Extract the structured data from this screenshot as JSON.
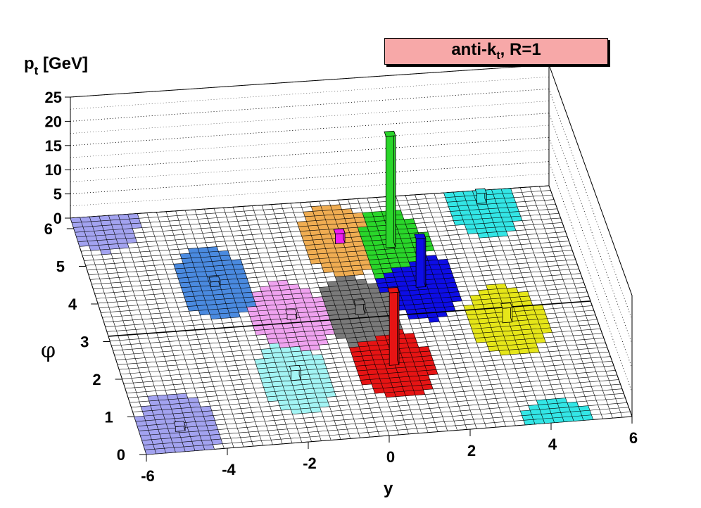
{
  "chart_data": {
    "type": "lego3d",
    "title_parts": [
      "anti-k",
      "t",
      ", R=1"
    ],
    "xlabel": "y",
    "ylabel": "φ",
    "zlabel_parts": [
      "p",
      "t",
      " [GeV]"
    ],
    "xlim": [
      -6,
      6
    ],
    "ylim": [
      0,
      6.28
    ],
    "zlim": [
      0,
      25
    ],
    "x_ticks": [
      "-6",
      "-4",
      "-2",
      "0",
      "2",
      "4",
      "6"
    ],
    "y_ticks": [
      "0",
      "1",
      "2",
      "3",
      "4",
      "5",
      "6"
    ],
    "z_ticks": [
      "0",
      "5",
      "10",
      "15",
      "20",
      "25"
    ],
    "grid": true,
    "jets": [
      {
        "color": "#f0ad52",
        "y": 0.4,
        "phi": 5.2,
        "radius": 0.95,
        "pt": 2
      },
      {
        "color": "#f01ff0",
        "y": 0.4,
        "phi": 5.2,
        "radius": 0.95,
        "pt": 2
      },
      {
        "color": "#2ad62a",
        "y": 1.6,
        "phi": 5.0,
        "radius": 0.95,
        "pt": 23
      },
      {
        "color": "#33e6e6",
        "y": 4.2,
        "phi": 6.0,
        "radius": 0.95,
        "pt": 2
      },
      {
        "color": "#0d0de6",
        "y": 2.0,
        "phi": 3.9,
        "radius": 0.95,
        "pt": 10
      },
      {
        "color": "#e6e619",
        "y": 3.8,
        "phi": 2.8,
        "radius": 0.95,
        "pt": 3
      },
      {
        "color": "#7a7a7a",
        "y": 0.3,
        "phi": 3.3,
        "radius": 0.95,
        "pt": 2
      },
      {
        "color": "#e61414",
        "y": 0.7,
        "phi": 1.9,
        "radius": 0.95,
        "pt": 15
      },
      {
        "color": "#4a8ae0",
        "y": -3.0,
        "phi": 4.3,
        "radius": 0.95,
        "pt": 1
      },
      {
        "color": "#f0a3f0",
        "y": -1.4,
        "phi": 3.3,
        "radius": 0.95,
        "pt": 1
      },
      {
        "color": "#a3f5f5",
        "y": -1.8,
        "phi": 1.7,
        "radius": 0.95,
        "pt": 2
      },
      {
        "color": "#a3a3f0",
        "y": -5.0,
        "phi": 0.6,
        "radius": 0.95,
        "pt": 1
      },
      {
        "color": "#a3a3f0",
        "y": -5.3,
        "phi": 6.28,
        "radius": 0.95,
        "pt": 0
      }
    ],
    "ground_color": "#ffffff"
  }
}
